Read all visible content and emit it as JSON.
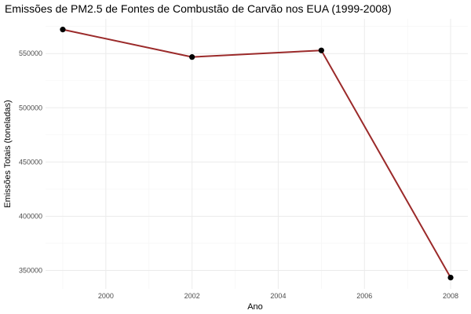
{
  "chart_data": {
    "type": "line",
    "title": "Emissões de PM2.5 de Fontes de Combustão de Carvão nos EUA (1999-2008)",
    "xlabel": "Ano",
    "ylabel": "Emissões Totais (toneladas)",
    "x": [
      1999,
      2002,
      2005,
      2008
    ],
    "series": [
      {
        "values": [
          572126,
          546789,
          552881,
          343432
        ]
      }
    ],
    "xlim": [
      1998.6,
      2008.4
    ],
    "ylim": [
      333000,
      582000
    ],
    "xticks": [
      2000,
      2002,
      2004,
      2006,
      2008
    ],
    "yticks": [
      350000,
      400000,
      450000,
      500000,
      550000
    ],
    "x_tick_labels": [
      "2000",
      "2002",
      "2004",
      "2006",
      "2008"
    ],
    "y_tick_labels": [
      "350000",
      "400000",
      "450000",
      "500000",
      "550000"
    ],
    "grid": true,
    "legend": "none",
    "colors": {
      "line": "#9b2a2a",
      "points": "#000000"
    }
  }
}
